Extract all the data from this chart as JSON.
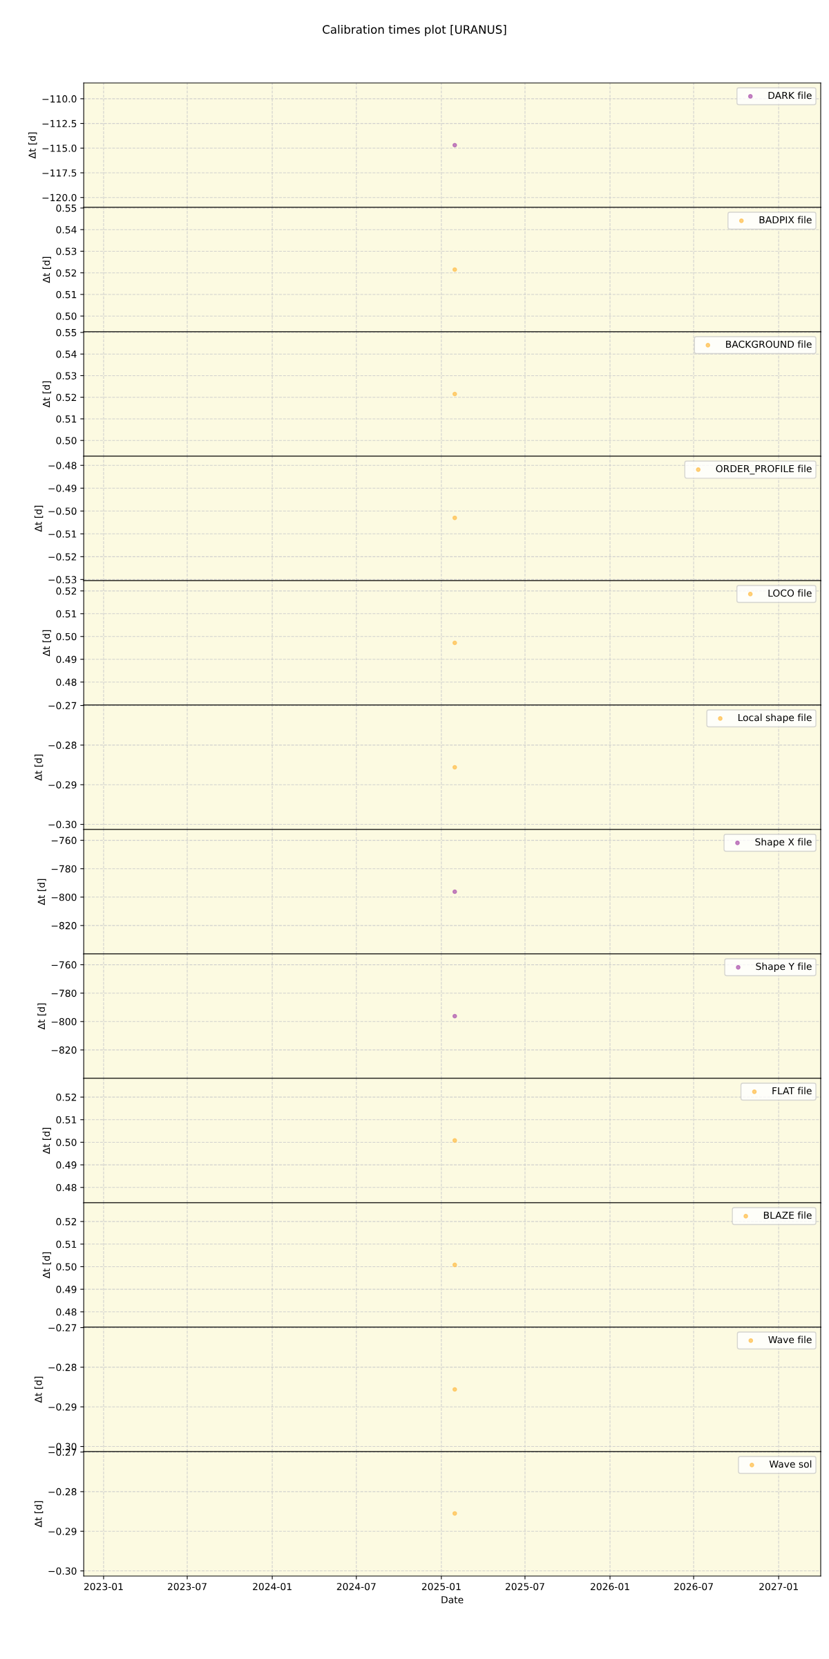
{
  "chart_data": [
    {
      "type": "scatter",
      "title": "Calibration times plot [URANUS]",
      "ylabel": "Δt [d]",
      "x": [
        "2025-01-30"
      ],
      "series": [
        {
          "name": "DARK file",
          "color": "#b05bb0",
          "values": [
            -114.7
          ]
        }
      ],
      "xlim": [
        "2022-11-19",
        "2027-04-02"
      ],
      "xticks": [
        "2023-01",
        "2023-07",
        "2024-01",
        "2024-07",
        "2025-01",
        "2025-07",
        "2026-01",
        "2026-07",
        "2027-01"
      ],
      "ylim": [
        -121.0,
        -108.4
      ],
      "yticks": [
        {
          "value": -110,
          "label": "−110.0"
        },
        {
          "value": -112.5,
          "label": "−112.5"
        },
        {
          "value": -115,
          "label": "−115.0"
        },
        {
          "value": -117.5,
          "label": "−117.5"
        },
        {
          "value": -120,
          "label": "−120.0"
        }
      ],
      "grid": true,
      "legend": "top right",
      "marker": "circle",
      "tick_labels": "y"
    },
    {
      "type": "scatter",
      "ylabel": "Δt [d]",
      "x": [
        "2025-01-30"
      ],
      "series": [
        {
          "name": "BADPIX file",
          "color": "#ffc050",
          "values": [
            0.5215
          ]
        }
      ],
      "xlim": [
        "2022-11-19",
        "2027-04-02"
      ],
      "xticks": [
        "2023-01",
        "2023-07",
        "2024-01",
        "2024-07",
        "2025-01",
        "2025-07",
        "2026-01",
        "2026-07",
        "2027-01"
      ],
      "ylim": [
        0.4927,
        0.5503
      ],
      "yticks": [
        {
          "value": 0.5,
          "label": "0.50"
        },
        0.51,
        0.52,
        0.53,
        0.54,
        0.55
      ],
      "grid": true,
      "legend": "top right",
      "marker": "circle",
      "tick_labels": "y"
    },
    {
      "type": "scatter",
      "ylabel": "Δt [d]",
      "x": [
        "2025-01-30"
      ],
      "series": [
        {
          "name": "BACKGROUND file",
          "color": "#ffc050",
          "values": [
            0.5215
          ]
        }
      ],
      "xlim": [
        "2022-11-19",
        "2027-04-02"
      ],
      "xticks": [
        "2023-01",
        "2023-07",
        "2024-01",
        "2024-07",
        "2025-01",
        "2025-07",
        "2026-01",
        "2026-07",
        "2027-01"
      ],
      "ylim": [
        0.4927,
        0.5503
      ],
      "yticks": [
        {
          "value": 0.5,
          "label": "0.50"
        },
        0.51,
        0.52,
        0.53,
        0.54,
        0.55
      ],
      "grid": true,
      "legend": "top right",
      "marker": "circle",
      "tick_labels": "y"
    },
    {
      "type": "scatter",
      "ylabel": "Δt [d]",
      "x": [
        "2025-01-30"
      ],
      "series": [
        {
          "name": "ORDER_PROFILE file",
          "color": "#ffc050",
          "values": [
            -0.503
          ]
        }
      ],
      "xlim": [
        "2022-11-19",
        "2027-04-02"
      ],
      "xticks": [
        "2023-01",
        "2023-07",
        "2024-01",
        "2024-07",
        "2025-01",
        "2025-07",
        "2026-01",
        "2026-07",
        "2027-01"
      ],
      "ylim": [
        -0.5305,
        -0.476
      ],
      "yticks": [
        {
          "value": -0.48,
          "label": "−0.48"
        },
        {
          "value": -0.49,
          "label": "−0.49"
        },
        {
          "value": -0.5,
          "label": "−0.50"
        },
        {
          "value": -0.51,
          "label": "−0.51"
        },
        {
          "value": -0.52,
          "label": "−0.52"
        },
        {
          "value": -0.53,
          "label": "−0.53"
        }
      ],
      "grid": true,
      "legend": "top right",
      "marker": "circle",
      "tick_labels": "y"
    },
    {
      "type": "scatter",
      "ylabel": "Δt [d]",
      "x": [
        "2025-01-30"
      ],
      "series": [
        {
          "name": "LOCO file",
          "color": "#ffc050",
          "values": [
            0.4972
          ]
        }
      ],
      "xlim": [
        "2022-11-19",
        "2027-04-02"
      ],
      "xticks": [
        "2023-01",
        "2023-07",
        "2024-01",
        "2024-07",
        "2025-01",
        "2025-07",
        "2026-01",
        "2026-07",
        "2027-01"
      ],
      "ylim": [
        0.4699,
        0.5245
      ],
      "yticks": [
        0.48,
        0.49,
        {
          "value": 0.5,
          "label": "0.50"
        },
        0.51,
        0.52
      ],
      "grid": true,
      "legend": "top right",
      "marker": "circle",
      "tick_labels": "y"
    },
    {
      "type": "scatter",
      "ylabel": "Δt [d]",
      "x": [
        "2025-01-30"
      ],
      "series": [
        {
          "name": "Local shape file",
          "color": "#ffc050",
          "values": [
            -0.2856
          ]
        }
      ],
      "xlim": [
        "2022-11-19",
        "2027-04-02"
      ],
      "xticks": [
        "2023-01",
        "2023-07",
        "2024-01",
        "2024-07",
        "2025-01",
        "2025-07",
        "2026-01",
        "2026-07",
        "2027-01"
      ],
      "ylim": [
        -0.3013,
        -0.2699
      ],
      "yticks": [
        {
          "value": -0.27,
          "label": "−0.27"
        },
        {
          "value": -0.28,
          "label": "−0.28"
        },
        {
          "value": -0.29,
          "label": "−0.29"
        },
        {
          "value": -0.3,
          "label": "−0.30"
        }
      ],
      "grid": true,
      "legend": "top right",
      "marker": "circle",
      "tick_labels": "y"
    },
    {
      "type": "scatter",
      "ylabel": "Δt [d]",
      "x": [
        "2025-01-30"
      ],
      "series": [
        {
          "name": "Shape X file",
          "color": "#b05bb0",
          "values": [
            -796.2
          ]
        }
      ],
      "xlim": [
        "2022-11-19",
        "2027-04-02"
      ],
      "xticks": [
        "2023-01",
        "2023-07",
        "2024-01",
        "2024-07",
        "2025-01",
        "2025-07",
        "2026-01",
        "2026-07",
        "2027-01"
      ],
      "ylim": [
        -840,
        -752.4
      ],
      "yticks": [
        {
          "value": -760,
          "label": "−760"
        },
        {
          "value": -780,
          "label": "−780"
        },
        {
          "value": -800,
          "label": "−800"
        },
        {
          "value": -820,
          "label": "−820"
        }
      ],
      "grid": true,
      "legend": "top right",
      "marker": "circle",
      "tick_labels": "y"
    },
    {
      "type": "scatter",
      "ylabel": "Δt [d]",
      "x": [
        "2025-01-30"
      ],
      "series": [
        {
          "name": "Shape Y file",
          "color": "#b05bb0",
          "values": [
            -796.2
          ]
        }
      ],
      "xlim": [
        "2022-11-19",
        "2027-04-02"
      ],
      "xticks": [
        "2023-01",
        "2023-07",
        "2024-01",
        "2024-07",
        "2025-01",
        "2025-07",
        "2026-01",
        "2026-07",
        "2027-01"
      ],
      "ylim": [
        -840,
        -752.4
      ],
      "yticks": [
        {
          "value": -760,
          "label": "−760"
        },
        {
          "value": -780,
          "label": "−780"
        },
        {
          "value": -800,
          "label": "−800"
        },
        {
          "value": -820,
          "label": "−820"
        }
      ],
      "grid": true,
      "legend": "top right",
      "marker": "circle",
      "tick_labels": "y"
    },
    {
      "type": "scatter",
      "ylabel": "Δt [d]",
      "x": [
        "2025-01-30"
      ],
      "series": [
        {
          "name": "FLAT file",
          "color": "#ffc050",
          "values": [
            0.5008
          ]
        }
      ],
      "xlim": [
        "2022-11-19",
        "2027-04-02"
      ],
      "xticks": [
        "2023-01",
        "2023-07",
        "2024-01",
        "2024-07",
        "2025-01",
        "2025-07",
        "2026-01",
        "2026-07",
        "2027-01"
      ],
      "ylim": [
        0.4732,
        0.5283
      ],
      "yticks": [
        0.48,
        0.49,
        {
          "value": 0.5,
          "label": "0.50"
        },
        0.51,
        0.52
      ],
      "grid": true,
      "legend": "top right",
      "marker": "circle",
      "tick_labels": "y"
    },
    {
      "type": "scatter",
      "ylabel": "Δt [d]",
      "x": [
        "2025-01-30"
      ],
      "series": [
        {
          "name": "BLAZE file",
          "color": "#ffc050",
          "values": [
            0.5008
          ]
        }
      ],
      "xlim": [
        "2022-11-19",
        "2027-04-02"
      ],
      "xticks": [
        "2023-01",
        "2023-07",
        "2024-01",
        "2024-07",
        "2025-01",
        "2025-07",
        "2026-01",
        "2026-07",
        "2027-01"
      ],
      "ylim": [
        0.4732,
        0.5283
      ],
      "yticks": [
        0.48,
        0.49,
        {
          "value": 0.5,
          "label": "0.50"
        },
        0.51,
        0.52
      ],
      "grid": true,
      "legend": "top right",
      "marker": "circle",
      "tick_labels": "y"
    },
    {
      "type": "scatter",
      "ylabel": "Δt [d]",
      "x": [
        "2025-01-30"
      ],
      "series": [
        {
          "name": "Wave file",
          "color": "#ffc050",
          "values": [
            -0.2856
          ]
        }
      ],
      "xlim": [
        "2022-11-19",
        "2027-04-02"
      ],
      "xticks": [
        "2023-01",
        "2023-07",
        "2024-01",
        "2024-07",
        "2025-01",
        "2025-07",
        "2026-01",
        "2026-07",
        "2027-01"
      ],
      "ylim": [
        -0.3013,
        -0.2699
      ],
      "yticks": [
        {
          "value": -0.27,
          "label": "−0.27"
        },
        {
          "value": -0.28,
          "label": "−0.28"
        },
        {
          "value": -0.29,
          "label": "−0.29"
        },
        {
          "value": -0.3,
          "label": "−0.30"
        }
      ],
      "grid": true,
      "legend": "top right",
      "marker": "circle",
      "tick_labels": "y"
    },
    {
      "type": "scatter",
      "xlabel": "Date",
      "ylabel": "Δt [d]",
      "x": [
        "2025-01-30"
      ],
      "series": [
        {
          "name": "Wave sol",
          "color": "#ffc050",
          "values": [
            -0.2855
          ]
        }
      ],
      "xlim": [
        "2022-11-19",
        "2027-04-02"
      ],
      "xticks": [
        "2023-01",
        "2023-07",
        "2024-01",
        "2024-07",
        "2025-01",
        "2025-07",
        "2026-01",
        "2026-07",
        "2027-01"
      ],
      "ylim": [
        -0.3013,
        -0.2699
      ],
      "yticks": [
        {
          "value": -0.27,
          "label": "−0.27"
        },
        {
          "value": -0.28,
          "label": "−0.28"
        },
        {
          "value": -0.29,
          "label": "−0.29"
        },
        {
          "value": -0.3,
          "label": "−0.30"
        }
      ],
      "grid": true,
      "legend": "top right",
      "marker": "circle"
    }
  ]
}
